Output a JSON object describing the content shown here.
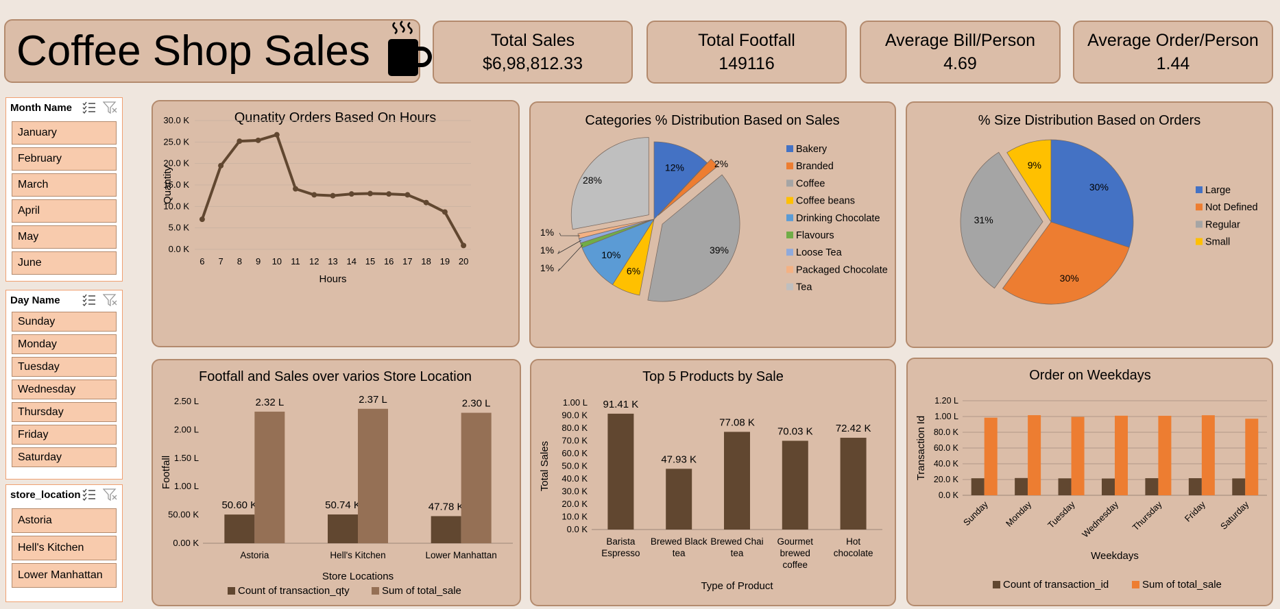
{
  "header": {
    "title": "Coffee Shop Sales",
    "kpis": [
      {
        "label": "Total Sales",
        "value": "$6,98,812.33"
      },
      {
        "label": "Total Footfall",
        "value": "149116"
      },
      {
        "label": "Average Bill/Person",
        "value": "4.69"
      },
      {
        "label": "Average Order/Person",
        "value": "1.44"
      }
    ]
  },
  "slicers": {
    "month": {
      "title": "Month Name",
      "items": [
        "January",
        "February",
        "March",
        "April",
        "May",
        "June"
      ]
    },
    "day": {
      "title": "Day Name",
      "items": [
        "Sunday",
        "Monday",
        "Tuesday",
        "Wednesday",
        "Thursday",
        "Friday",
        "Saturday"
      ]
    },
    "store": {
      "title": "store_location",
      "items": [
        "Astoria",
        "Hell's Kitchen",
        "Lower Manhattan"
      ]
    }
  },
  "colors": {
    "brown": "#614730",
    "lightbrown": "#957055",
    "orange": "#ed7d31"
  },
  "chart_data": [
    {
      "type": "line",
      "title": "Qunatity Orders Based On Hours",
      "xlabel": "Hours",
      "ylabel": "Quantity",
      "x": [
        6,
        7,
        8,
        9,
        10,
        11,
        12,
        13,
        14,
        15,
        16,
        17,
        18,
        19,
        20
      ],
      "values": [
        7000,
        19500,
        25200,
        25400,
        26700,
        14100,
        12700,
        12500,
        12900,
        13000,
        12900,
        12700,
        10900,
        8700,
        900
      ],
      "ylim": [
        0,
        30000
      ],
      "yticks": [
        "0.0 K",
        "5.0 K",
        "10.0 K",
        "15.0 K",
        "20.0 K",
        "25.0 K",
        "30.0 K"
      ],
      "grid": true
    },
    {
      "type": "pie",
      "title": "Categories % Distribution Based on Sales",
      "labels": [
        "Bakery",
        "Branded",
        "Coffee",
        "Coffee beans",
        "Drinking Chocolate",
        "Flavours",
        "Loose Tea",
        "Packaged Chocolate",
        "Tea"
      ],
      "values": [
        12,
        2,
        39,
        6,
        10,
        1,
        1,
        1,
        28
      ],
      "data_labels": [
        "12%",
        "2%",
        "39%",
        "6%",
        "10%",
        "1%",
        "1%",
        "1%",
        "28%"
      ],
      "colors": [
        "#4472c4",
        "#ed7d31",
        "#a5a5a5",
        "#ffc000",
        "#5b9bd5",
        "#70ad47",
        "#8faadc",
        "#f4b183",
        "#bfbfbf"
      ],
      "legend": "right"
    },
    {
      "type": "pie",
      "title": "% Size Distribution Based on Orders",
      "labels": [
        "Large",
        "Not Defined",
        "Regular",
        "Small"
      ],
      "values": [
        30,
        30,
        31,
        9
      ],
      "data_labels": [
        "30%",
        "30%",
        "31%",
        "9%"
      ],
      "colors": [
        "#4472c4",
        "#ed7d31",
        "#a5a5a5",
        "#ffc000"
      ],
      "legend": "right"
    },
    {
      "type": "bar",
      "title": "Footfall and Sales over varios Store Location",
      "xlabel": "Store Locations",
      "ylabel": "Footfall",
      "categories": [
        "Astoria",
        "Hell's Kitchen",
        "Lower Manhattan"
      ],
      "series": [
        {
          "name": "Count of transaction_qty",
          "values": [
            50600,
            50740,
            47780
          ],
          "labels": [
            "50.60 K",
            "50.74 K",
            "47.78 K"
          ],
          "color": "#614730"
        },
        {
          "name": "Sum of total_sale",
          "values": [
            232000,
            237000,
            230000
          ],
          "labels": [
            "2.32 L",
            "2.37 L",
            "2.30 L"
          ],
          "color": "#957055"
        }
      ],
      "ylim": [
        0,
        250000
      ],
      "yticks": [
        "0.00 K",
        "50.00 K",
        "1.00 L",
        "1.50 L",
        "2.00 L",
        "2.50 L"
      ],
      "legend": "bottom"
    },
    {
      "type": "bar",
      "title": "Top 5 Products by Sale",
      "xlabel": "Type of Product",
      "ylabel": "Total Sales",
      "categories": [
        "Barista Espresso",
        "Brewed Black tea",
        "Brewed Chai tea",
        "Gourmet brewed coffee",
        "Hot chocolate"
      ],
      "values": [
        91410,
        47930,
        77080,
        70030,
        72420
      ],
      "data_labels": [
        "91.41 K",
        "47.93 K",
        "77.08 K",
        "70.03 K",
        "72.42 K"
      ],
      "ylim": [
        0,
        100000
      ],
      "yticks": [
        "0.0 K",
        "10.0 K",
        "20.0 K",
        "30.0 K",
        "40.0 K",
        "50.0 K",
        "60.0 K",
        "70.0 K",
        "80.0 K",
        "90.0 K",
        "1.00 L"
      ]
    },
    {
      "type": "bar",
      "title": "Order on Weekdays",
      "xlabel": "Weekdays",
      "ylabel": "Transaction Id",
      "categories": [
        "Sunday",
        "Monday",
        "Tuesday",
        "Wednesday",
        "Thursday",
        "Friday",
        "Saturday"
      ],
      "series": [
        {
          "name": "Count of transaction_id",
          "values": [
            21600,
            21900,
            21500,
            21300,
            21700,
            21700,
            21400
          ],
          "color": "#614730"
        },
        {
          "name": "Sum of total_sale",
          "values": [
            98500,
            101700,
            99500,
            101000,
            100900,
            101600,
            97200
          ],
          "color": "#ed7d31"
        }
      ],
      "ylim": [
        0,
        120000
      ],
      "yticks": [
        "0.0 K",
        "20.0 K",
        "40.0 K",
        "60.0 K",
        "80.0 K",
        "1.00 L",
        "1.20 L"
      ],
      "legend": "bottom"
    }
  ]
}
